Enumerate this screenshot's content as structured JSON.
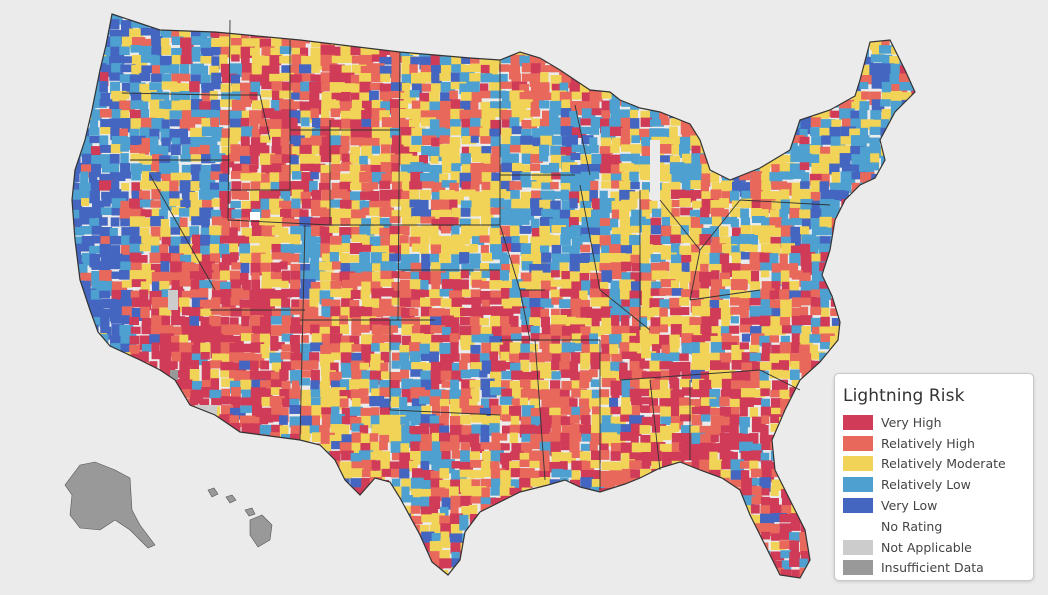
{
  "legend": {
    "title": "Lightning Risk",
    "items": [
      {
        "label": "Very High",
        "color": "#d03b57"
      },
      {
        "label": "Relatively High",
        "color": "#e8685c"
      },
      {
        "label": "Relatively Moderate",
        "color": "#f1d358"
      },
      {
        "label": "Relatively Low",
        "color": "#4da0cf"
      },
      {
        "label": "Very Low",
        "color": "#4466c0"
      },
      {
        "label": "No Rating",
        "color": "#ffffff"
      },
      {
        "label": "Not Applicable",
        "color": "#cccccc"
      },
      {
        "label": "Insufficient Data",
        "color": "#999999"
      }
    ]
  },
  "map_colors": {
    "background": "#ebebeb",
    "border": "#333333"
  }
}
